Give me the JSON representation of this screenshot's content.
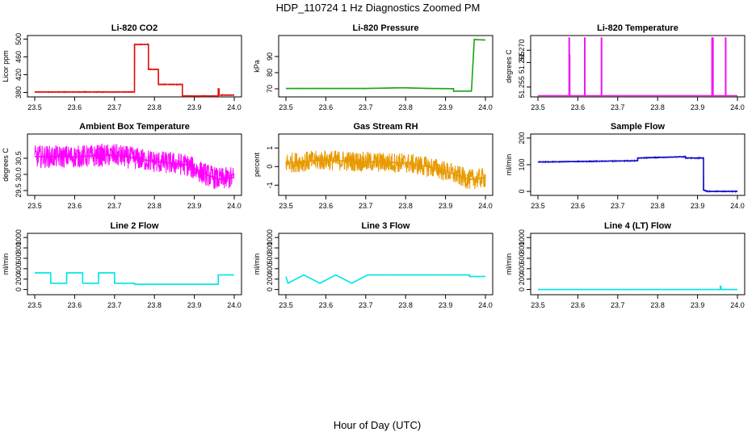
{
  "figure": {
    "title": "HDP_110724  1 Hz Diagnostics Zoomed PM",
    "xlabel": "Hour of Day (UTC)"
  },
  "chart_data": [
    {
      "type": "line",
      "title": "Li-820 CO2",
      "ylabel": "Licor ppm",
      "color": "#e01010",
      "xlim": [
        23.5,
        24.0
      ],
      "ylim": [
        370,
        508
      ],
      "xticks": [
        "23.5",
        "23.6",
        "23.7",
        "23.8",
        "23.9",
        "24.0"
      ],
      "yticks": [
        "380",
        "420",
        "460",
        "500"
      ],
      "x": [
        23.5,
        23.75,
        23.75,
        23.785,
        23.785,
        23.81,
        23.81,
        23.83,
        23.83,
        23.87,
        23.87,
        23.96,
        23.96,
        23.962,
        23.962,
        24.0
      ],
      "y": [
        381,
        381,
        488,
        488,
        432,
        432,
        398,
        398,
        398,
        398,
        372,
        372,
        388,
        388,
        374,
        374
      ],
      "noise": 1
    },
    {
      "type": "line",
      "title": "Li-820 Pressure",
      "ylabel": "kPa",
      "color": "#1aa51a",
      "xlim": [
        23.5,
        24.0
      ],
      "ylim": [
        65,
        103
      ],
      "xticks": [
        "23.5",
        "23.6",
        "23.7",
        "23.8",
        "23.9",
        "24.0"
      ],
      "yticks": [
        "70",
        "80",
        "90"
      ],
      "x": [
        23.5,
        23.7,
        23.78,
        23.8,
        23.86,
        23.92,
        23.92,
        23.965,
        23.972,
        24.0
      ],
      "y": [
        70.2,
        70.2,
        70.6,
        70.6,
        70.2,
        70.1,
        68.5,
        68.6,
        100.5,
        100.2
      ],
      "noise": 0.15
    },
    {
      "type": "line",
      "title": "Li-820 Temperature",
      "ylabel": "degrees C",
      "color": "#ee1cee",
      "xlim": [
        23.5,
        24.0
      ],
      "ylim": [
        51.251,
        51.276
      ],
      "xticks": [
        "23.5",
        "23.6",
        "23.7",
        "23.8",
        "23.9",
        "24.0"
      ],
      "yticks": [
        "51.255",
        "51.265",
        "51.270"
      ],
      "x": [
        23.5,
        23.578,
        23.578,
        23.579,
        23.579,
        23.58,
        23.58,
        23.617,
        23.617,
        23.618,
        23.618,
        23.659,
        23.659,
        23.66,
        23.66,
        23.936,
        23.936,
        23.937,
        23.937,
        23.938,
        23.938,
        23.939,
        23.939,
        23.97,
        23.97,
        23.971,
        23.971,
        24.0
      ],
      "y": [
        51.2515,
        51.2515,
        51.275,
        51.275,
        51.268,
        51.268,
        51.2515,
        51.2515,
        51.275,
        51.275,
        51.2515,
        51.2515,
        51.275,
        51.275,
        51.2515,
        51.2515,
        51.275,
        51.275,
        51.2515,
        51.2515,
        51.275,
        51.275,
        51.2515,
        51.2515,
        51.275,
        51.275,
        51.2515,
        51.2515
      ],
      "noise": 0
    },
    {
      "type": "line",
      "title": "Ambient Box Temperature",
      "ylabel": "degrees C",
      "color": "#ff00ff",
      "xlim": [
        23.5,
        24.0
      ],
      "ylim": [
        29.35,
        31.25
      ],
      "xticks": [
        "23.5",
        "23.6",
        "23.7",
        "23.8",
        "23.9",
        "24.0"
      ],
      "yticks": [
        "29.5",
        "30.0",
        "30.5"
      ],
      "x": [
        23.5,
        23.6,
        23.7,
        23.8,
        23.88,
        23.92,
        23.96,
        24.0
      ],
      "y": [
        30.55,
        30.55,
        30.6,
        30.4,
        30.3,
        30.05,
        29.85,
        29.9
      ],
      "noise": 0.35
    },
    {
      "type": "line",
      "title": "Gas Stream RH",
      "ylabel": "percent",
      "color": "#e89a00",
      "xlim": [
        23.5,
        24.0
      ],
      "ylim": [
        -1.55,
        1.75
      ],
      "xticks": [
        "23.5",
        "23.6",
        "23.7",
        "23.8",
        "23.9",
        "24.0"
      ],
      "yticks": [
        "-1",
        "0",
        "1"
      ],
      "x": [
        23.5,
        23.6,
        23.7,
        23.8,
        23.88,
        23.92,
        23.96,
        24.0
      ],
      "y": [
        0.2,
        0.35,
        0.25,
        0.2,
        -0.1,
        -0.4,
        -0.7,
        -0.6
      ],
      "noise": 0.55
    },
    {
      "type": "line",
      "title": "Sample Flow",
      "ylabel": "ml/min",
      "color": "#1010cc",
      "xlim": [
        23.5,
        24.0
      ],
      "ylim": [
        -15,
        215
      ],
      "xticks": [
        "23.5",
        "23.6",
        "23.7",
        "23.8",
        "23.9",
        "24.0"
      ],
      "yticks": [
        "0",
        "100",
        "200"
      ],
      "x": [
        23.5,
        23.75,
        23.75,
        23.87,
        23.87,
        23.915,
        23.915,
        23.925,
        24.0
      ],
      "y": [
        110,
        115,
        125,
        130,
        125,
        125,
        5,
        0,
        0
      ],
      "noise": 2
    },
    {
      "type": "line",
      "title": "Line 2 Flow",
      "ylabel": "ml/min",
      "color": "#00e5e5",
      "xlim": [
        23.5,
        24.0
      ],
      "ylim": [
        -100,
        1080
      ],
      "xticks": [
        "23.5",
        "23.6",
        "23.7",
        "23.8",
        "23.9",
        "24.0"
      ],
      "yticks": [
        "0",
        "200",
        "400",
        "600",
        "800",
        "1000"
      ],
      "x": [
        23.5,
        23.5,
        23.54,
        23.54,
        23.58,
        23.58,
        23.62,
        23.62,
        23.66,
        23.66,
        23.7,
        23.7,
        23.75,
        23.75,
        23.96,
        23.96,
        24.0
      ],
      "y": [
        320,
        320,
        320,
        120,
        120,
        320,
        320,
        120,
        120,
        320,
        320,
        120,
        120,
        100,
        100,
        280,
        280
      ],
      "noise": 4
    },
    {
      "type": "line",
      "title": "Line 3 Flow",
      "ylabel": "ml/min",
      "color": "#00e5e5",
      "xlim": [
        23.5,
        24.0
      ],
      "ylim": [
        -100,
        1080
      ],
      "xticks": [
        "23.5",
        "23.6",
        "23.7",
        "23.8",
        "23.9",
        "24.0"
      ],
      "yticks": [
        "0",
        "200",
        "400",
        "600",
        "800",
        "1000"
      ],
      "x": [
        23.5,
        23.5,
        23.505,
        23.505,
        23.545,
        23.545,
        23.585,
        23.585,
        23.625,
        23.625,
        23.665,
        23.665,
        23.705,
        23.705,
        23.96,
        23.96,
        24.0
      ],
      "y": [
        250,
        250,
        120,
        120,
        280,
        280,
        120,
        120,
        280,
        280,
        120,
        120,
        280,
        280,
        280,
        250,
        250
      ],
      "noise": 4
    },
    {
      "type": "line",
      "title": "Line 4 (LT) Flow",
      "ylabel": "ml/min",
      "color": "#00e5e5",
      "xlim": [
        23.5,
        24.0
      ],
      "ylim": [
        -100,
        1080
      ],
      "xticks": [
        "23.5",
        "23.6",
        "23.7",
        "23.8",
        "23.9",
        "24.0"
      ],
      "yticks": [
        "0",
        "200",
        "400",
        "600",
        "800",
        "1000"
      ],
      "x": [
        23.5,
        23.957,
        23.957,
        23.959,
        23.959,
        24.0
      ],
      "y": [
        0,
        0,
        60,
        60,
        0,
        0
      ],
      "noise": 3
    }
  ]
}
